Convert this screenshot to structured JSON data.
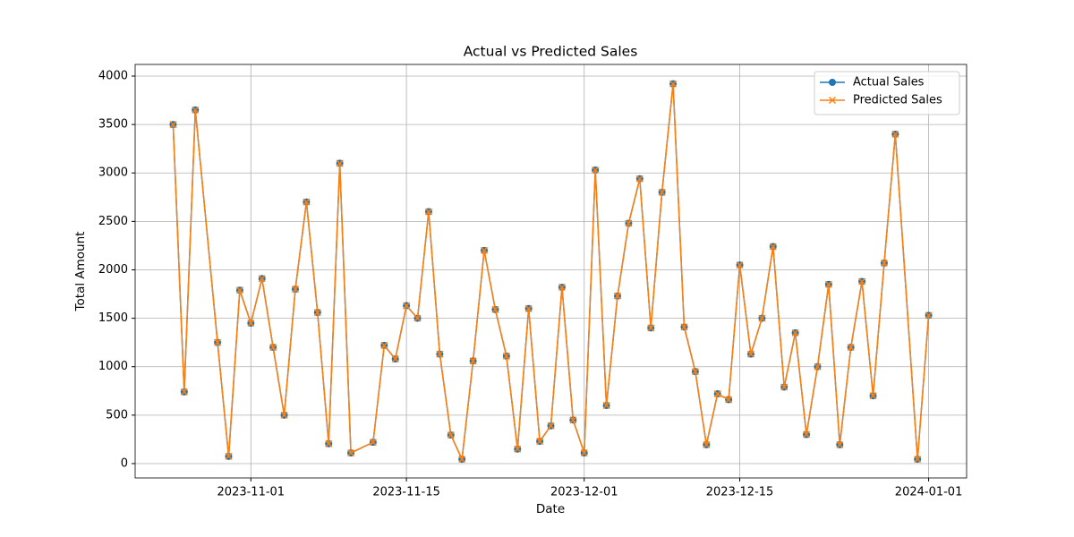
{
  "chart_data": {
    "type": "line",
    "title": "Actual vs Predicted Sales",
    "x_label": "Date",
    "y_label": "Total Amount",
    "x": [
      "2023-10-25",
      "2023-10-26",
      "2023-10-27",
      "2023-10-29",
      "2023-10-30",
      "2023-10-31",
      "2023-11-01",
      "2023-11-02",
      "2023-11-03",
      "2023-11-04",
      "2023-11-05",
      "2023-11-06",
      "2023-11-07",
      "2023-11-08",
      "2023-11-09",
      "2023-11-10",
      "2023-11-12",
      "2023-11-13",
      "2023-11-14",
      "2023-11-15",
      "2023-11-16",
      "2023-11-17",
      "2023-11-18",
      "2023-11-19",
      "2023-11-20",
      "2023-11-21",
      "2023-11-22",
      "2023-11-23",
      "2023-11-24",
      "2023-11-25",
      "2023-11-26",
      "2023-11-27",
      "2023-11-28",
      "2023-11-29",
      "2023-11-30",
      "2023-12-01",
      "2023-12-02",
      "2023-12-03",
      "2023-12-04",
      "2023-12-05",
      "2023-12-06",
      "2023-12-07",
      "2023-12-08",
      "2023-12-09",
      "2023-12-10",
      "2023-12-11",
      "2023-12-12",
      "2023-12-13",
      "2023-12-14",
      "2023-12-15",
      "2023-12-16",
      "2023-12-17",
      "2023-12-18",
      "2023-12-19",
      "2023-12-20",
      "2023-12-21",
      "2023-12-22",
      "2023-12-23",
      "2023-12-24",
      "2023-12-25",
      "2023-12-26",
      "2023-12-27",
      "2023-12-28",
      "2023-12-29",
      "2023-12-31",
      "2024-01-01"
    ],
    "series": [
      {
        "name": "Actual Sales",
        "color": "#1f77b4",
        "marker": "o",
        "values": [
          3500,
          740,
          3650,
          1250,
          75,
          1790,
          1450,
          1910,
          1200,
          500,
          1800,
          2700,
          1560,
          205,
          3100,
          110,
          220,
          1220,
          1080,
          1630,
          1500,
          2600,
          1130,
          295,
          45,
          1060,
          2200,
          1590,
          1110,
          150,
          1600,
          230,
          390,
          1820,
          450,
          110,
          3030,
          600,
          1730,
          2480,
          2940,
          1400,
          2800,
          3920,
          1410,
          950,
          195,
          720,
          660,
          2050,
          1130,
          1500,
          2240,
          790,
          1350,
          300,
          1000,
          1850,
          195,
          1200,
          1880,
          700,
          2070,
          3400,
          45,
          1530
        ]
      },
      {
        "name": "Predicted Sales",
        "color": "#ff7f0e",
        "marker": "x",
        "values": [
          3500,
          740,
          3650,
          1250,
          75,
          1790,
          1450,
          1910,
          1200,
          500,
          1800,
          2700,
          1560,
          205,
          3100,
          110,
          220,
          1220,
          1080,
          1630,
          1500,
          2600,
          1130,
          295,
          45,
          1060,
          2200,
          1590,
          1110,
          150,
          1600,
          230,
          390,
          1820,
          450,
          110,
          3030,
          600,
          1730,
          2480,
          2940,
          1400,
          2800,
          3920,
          1410,
          950,
          195,
          720,
          660,
          2050,
          1130,
          1500,
          2240,
          790,
          1350,
          300,
          1000,
          1850,
          195,
          1200,
          1880,
          700,
          2070,
          3400,
          45,
          1530
        ]
      }
    ],
    "xlim": [
      "2023-10-21T14:00",
      "2024-01-04T10:00"
    ],
    "xticks": [
      "2023-11-01",
      "2023-11-15",
      "2023-12-01",
      "2023-12-15",
      "2024-01-01"
    ],
    "ylim": [
      -148,
      4120
    ],
    "yticks": [
      0,
      500,
      1000,
      1500,
      2000,
      2500,
      3000,
      3500,
      4000
    ],
    "grid": true,
    "legend": "upper right"
  }
}
